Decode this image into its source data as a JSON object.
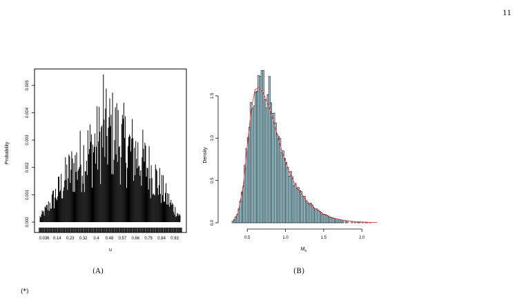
{
  "page_number": "11",
  "caption_a": "(A)",
  "caption_b": "(B)",
  "footnote": "(*)",
  "colors": {
    "histogram_fill": "#add8e6",
    "density_curve": "#e8454a",
    "bars_a": "#000000"
  },
  "chart_data": [
    {
      "id": "A",
      "type": "bar",
      "xlabel": "u",
      "ylabel": "Probability",
      "x_tick_labels": [
        "0.036",
        "0.14",
        "0.23",
        "0.32",
        "0.4",
        "0.48",
        "0.57",
        "0.66",
        "0.75",
        "0.84",
        "0.93"
      ],
      "y_ticks": [
        "0.000",
        "0.001",
        "0.002",
        "0.003",
        "0.004",
        "0.005"
      ],
      "ylim": [
        0,
        0.0054
      ],
      "xlim": [
        0.0,
        1.0
      ],
      "grid": false,
      "legend": "none",
      "envelope": {
        "x": [
          0.0,
          0.05,
          0.1,
          0.2,
          0.3,
          0.4,
          0.45,
          0.5,
          0.55,
          0.6,
          0.7,
          0.8,
          0.9,
          0.95,
          1.0
        ],
        "y": [
          0.0002,
          0.0006,
          0.0011,
          0.0022,
          0.003,
          0.0036,
          0.004,
          0.0042,
          0.004,
          0.0036,
          0.0031,
          0.0023,
          0.0011,
          0.0006,
          0.0002
        ]
      },
      "peak": {
        "x": 0.45,
        "y": 0.0054
      }
    },
    {
      "id": "B",
      "type": "bar",
      "xlabel": "M",
      "xlabel_subscript": "n",
      "ylabel": "Density",
      "x_ticks": [
        "0.5",
        "1.0",
        "1.5",
        "2.0"
      ],
      "y_ticks": [
        "0.0",
        "0.5",
        "1.0",
        "1.5"
      ],
      "xlim": [
        0.2,
        2.35
      ],
      "ylim": [
        0,
        1.85
      ],
      "grid": false,
      "legend": "none",
      "density_curve": {
        "x": [
          0.32,
          0.38,
          0.45,
          0.5,
          0.55,
          0.6,
          0.65,
          0.7,
          0.75,
          0.8,
          0.85,
          0.9,
          0.95,
          1.0,
          1.05,
          1.1,
          1.15,
          1.2,
          1.25,
          1.3,
          1.4,
          1.5,
          1.6,
          1.7,
          1.8,
          1.9,
          2.0,
          2.1,
          2.2
        ],
        "y": [
          0.02,
          0.12,
          0.45,
          0.9,
          1.32,
          1.57,
          1.6,
          1.55,
          1.45,
          1.33,
          1.18,
          1.02,
          0.86,
          0.72,
          0.6,
          0.5,
          0.42,
          0.35,
          0.29,
          0.24,
          0.16,
          0.1,
          0.065,
          0.04,
          0.025,
          0.015,
          0.009,
          0.005,
          0.003
        ]
      },
      "histogram_peak": {
        "x": 0.7,
        "y": 1.8
      }
    }
  ]
}
